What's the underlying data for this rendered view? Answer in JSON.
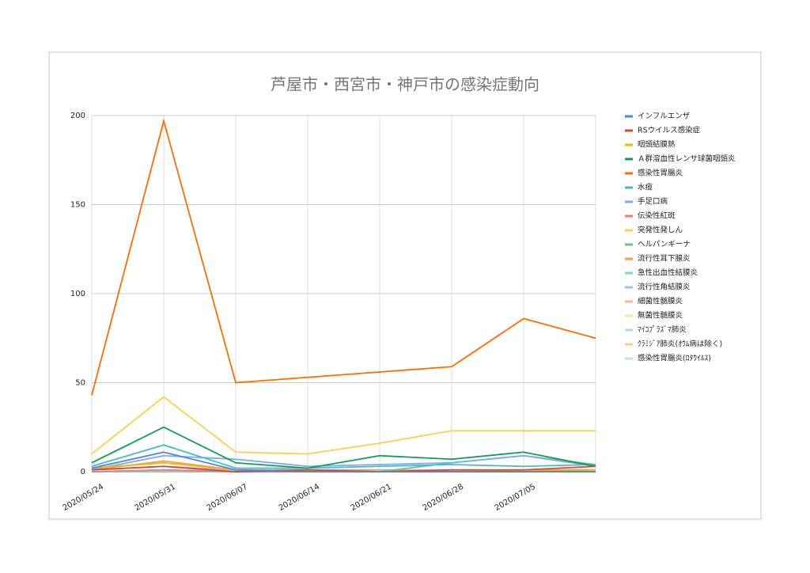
{
  "chart_data": {
    "type": "line",
    "title": "芦屋市・西宮市・神戸市の感染症動向",
    "categories": [
      "2020/05/24",
      "2020/05/31",
      "2020/06/07",
      "2020/06/14",
      "2020/06/21",
      "2020/06/28",
      "2020/07/05",
      null
    ],
    "ylim": [
      0,
      200
    ],
    "yticks": [
      0,
      50,
      100,
      150,
      200
    ],
    "grid": true,
    "legend": "right",
    "series": [
      {
        "name": "インフルエンザ",
        "color": "#4285f4",
        "values": [
          2,
          11,
          1,
          0,
          0,
          0,
          0,
          0
        ]
      },
      {
        "name": "RSウイルス感染症",
        "color": "#db4437",
        "values": [
          1,
          3,
          0,
          1,
          0,
          1,
          1,
          3
        ]
      },
      {
        "name": "咽頭結膜熱",
        "color": "#f4b400",
        "values": [
          2,
          5,
          1,
          1,
          0,
          1,
          1,
          1
        ]
      },
      {
        "name": "Ａ群溶血性レンサ球菌咽頭炎",
        "color": "#0f9d58",
        "values": [
          5,
          25,
          5,
          2,
          9,
          7,
          11,
          3
        ]
      },
      {
        "name": "感染性胃腸炎",
        "color": "#ff6d01",
        "values": [
          43,
          197,
          50,
          53,
          56,
          59,
          86,
          75
        ]
      },
      {
        "name": "水痘",
        "color": "#46bdc6",
        "values": [
          3,
          15,
          2,
          2,
          3,
          4,
          3,
          4
        ]
      },
      {
        "name": "手足口病",
        "color": "#7baaf7",
        "values": [
          1,
          9,
          7,
          3,
          4,
          5,
          9,
          3
        ]
      },
      {
        "name": "伝染性紅斑",
        "color": "#f07b72",
        "values": [
          0,
          1,
          0,
          0,
          0,
          0,
          0,
          1
        ]
      },
      {
        "name": "突発性発しん",
        "color": "#fcd04f",
        "values": [
          10,
          42,
          11,
          10,
          16,
          23,
          23,
          23
        ]
      },
      {
        "name": "ヘルパンギーナ",
        "color": "#71c287",
        "values": [
          0,
          1,
          0,
          0,
          0,
          5,
          9,
          4
        ]
      },
      {
        "name": "流行性耳下腺炎",
        "color": "#ff994d",
        "values": [
          1,
          6,
          1,
          1,
          1,
          0,
          1,
          1
        ]
      },
      {
        "name": "急性出血性結膜炎",
        "color": "#7ed1d7",
        "values": [
          0,
          0,
          0,
          0,
          0,
          0,
          0,
          0
        ]
      },
      {
        "name": "流行性角結膜炎",
        "color": "#a1c2fa",
        "values": [
          1,
          3,
          1,
          1,
          1,
          1,
          1,
          1
        ]
      },
      {
        "name": "細菌性髄膜炎",
        "color": "#f5b7a5",
        "values": [
          0,
          0,
          0,
          0,
          0,
          0,
          0,
          0
        ]
      },
      {
        "name": "無菌性髄膜炎",
        "color": "#fde49b",
        "values": [
          0,
          0,
          0,
          0,
          0,
          0,
          0,
          0
        ]
      },
      {
        "name": "ﾏｲｺﾌﾟﾗｽﾞﾏ肺炎",
        "color": "#b7e1cd",
        "values": [
          0,
          0,
          0,
          0,
          0,
          0,
          0,
          0
        ]
      },
      {
        "name": "ｸﾗﾐｼﾞｱ肺炎(ｵｳﾑ病は除く)",
        "color": "#f9cb9c",
        "values": [
          0,
          0,
          0,
          0,
          0,
          0,
          0,
          0
        ]
      },
      {
        "name": "感染性胃腸炎(ﾛﾀｳｲﾙｽ)",
        "color": "#b3e5ea",
        "values": [
          0,
          0,
          0,
          0,
          0,
          0,
          0,
          0
        ]
      }
    ]
  }
}
